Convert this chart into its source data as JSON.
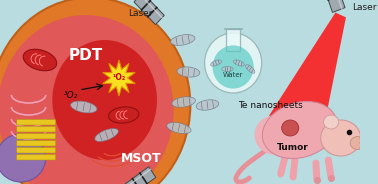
{
  "bg_color": "#b8dce0",
  "cell_outer_color": "#e07828",
  "cell_inner_color": "#e04040",
  "cell_hot_color": "#cc1010",
  "pdt_label": "PDT",
  "msot_label": "MSOT",
  "laser_label": "Laser",
  "o2_triplet": "³O₂",
  "o2_singlet": "¹O₂",
  "water_label": "Water",
  "te_label": "Te nanosheets",
  "tumor_label": "Tumor",
  "nucleus_color": "#9070b0",
  "golgi_color": "#e8c820",
  "mito_color": "#cc2020",
  "er_color": "#f0a0b8",
  "flask_body_color": "#e8f8f8",
  "flask_liquid_color": "#50c8c0",
  "nanosheet_color": "#b8c4cc",
  "mouse_body_color": "#f0a8b0",
  "mouse_head_color": "#f0b8b0",
  "laser_beam_color": "#ff1010",
  "laser_probe_color": "#a0a0a8",
  "sound_wave_color": "#e05030",
  "star_color": "#f8e020"
}
